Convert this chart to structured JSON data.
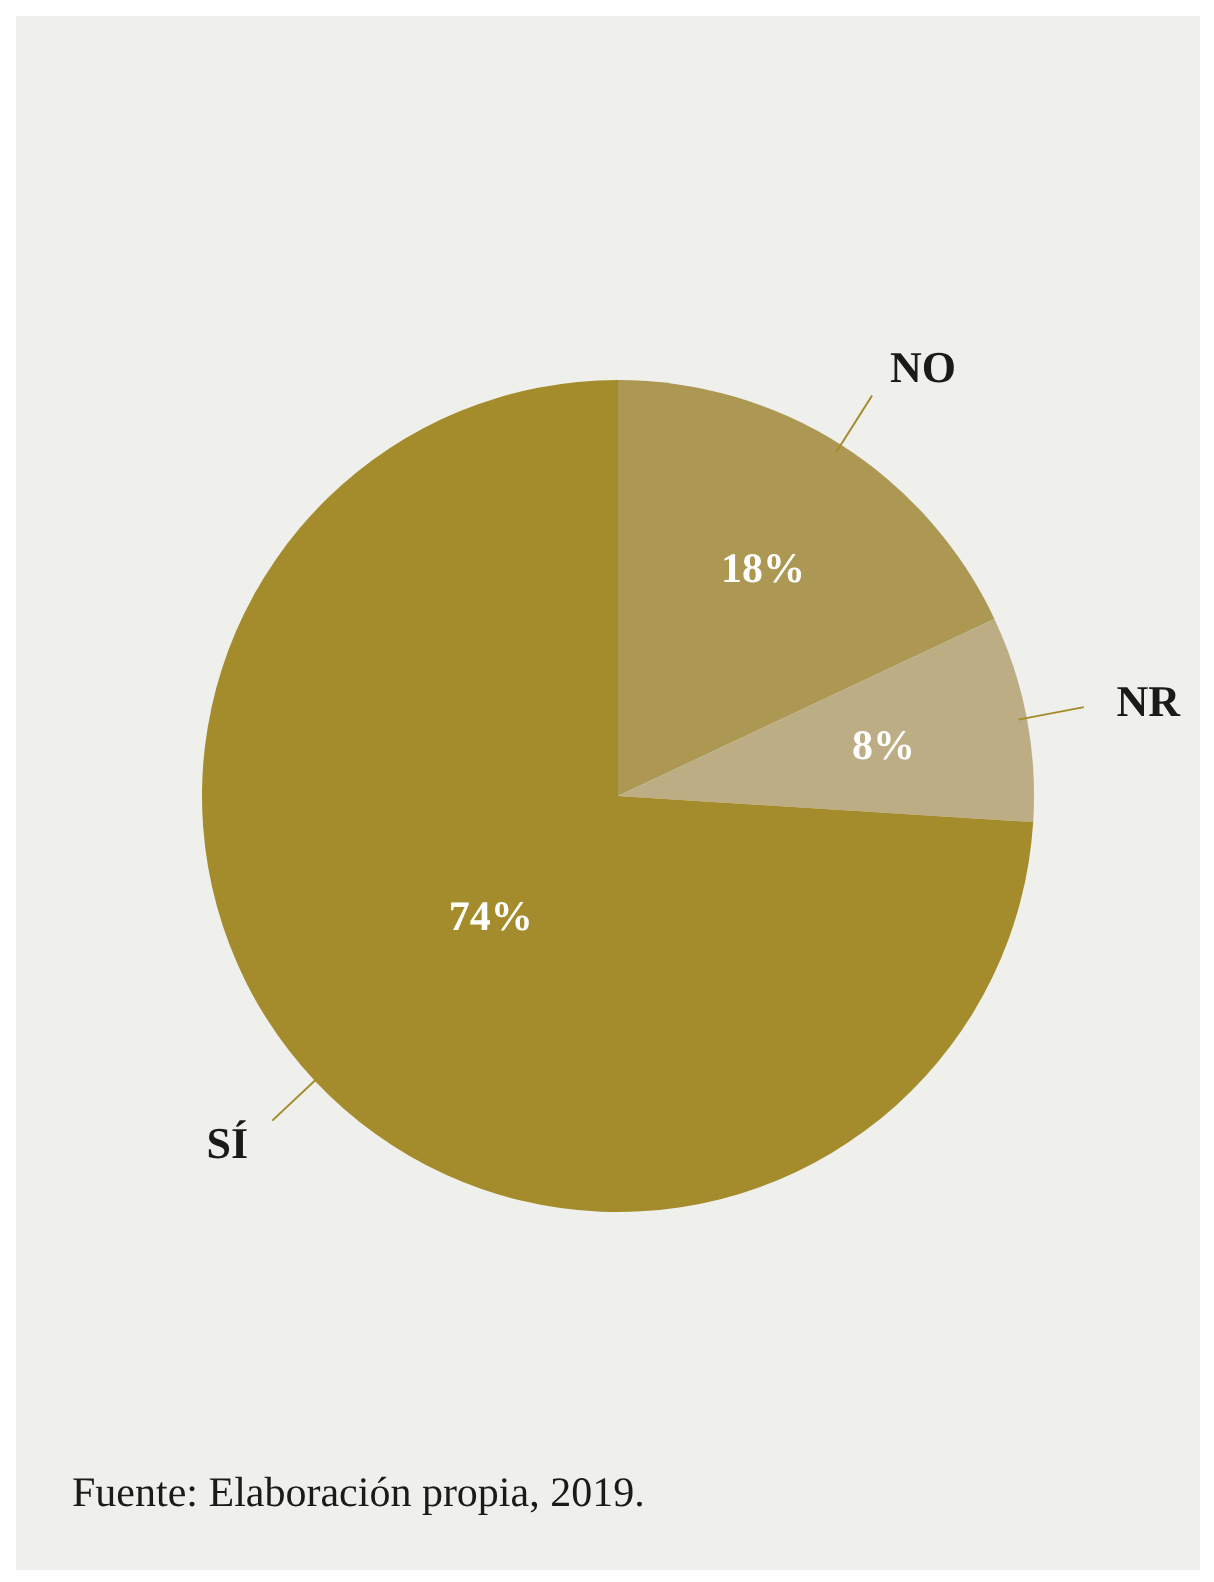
{
  "chart_data": {
    "type": "pie",
    "categories": [
      "NO",
      "NR",
      "SÍ"
    ],
    "values": [
      18,
      8,
      74
    ],
    "colors": [
      "#ac9852",
      "#bcad84",
      "#a48b2b"
    ],
    "value_labels": [
      "18%",
      "8%",
      "74%"
    ],
    "annotations": [
      "Fuente: Elaboración propia, 2019."
    ]
  }
}
